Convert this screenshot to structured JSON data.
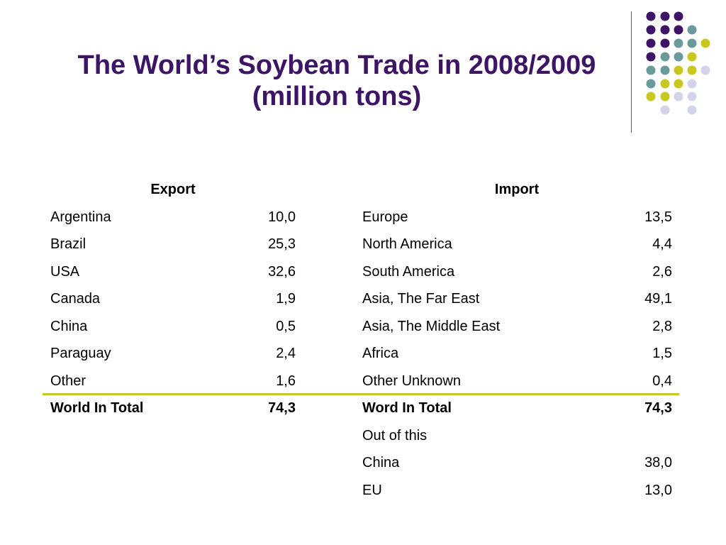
{
  "title": {
    "line1": "The World’s Soybean Trade in 2008/2009",
    "line2": "(million tons)"
  },
  "decoration": {
    "dot_colors": {
      "purple": "#3d1466",
      "teal": "#6a9a9a",
      "yellow": "#c8c820",
      "lavender": "#d4d4e8"
    }
  },
  "table": {
    "export_header": "Export",
    "import_header": "Import",
    "rows": [
      {
        "export_name": "Argentina",
        "export_value": "10,0",
        "import_name": "Europe",
        "import_value": "13,5"
      },
      {
        "export_name": "Brazil",
        "export_value": "25,3",
        "import_name": "North America",
        "import_value": "4,4"
      },
      {
        "export_name": "USA",
        "export_value": "32,6",
        "import_name": "South America",
        "import_value": "2,6"
      },
      {
        "export_name": "Canada",
        "export_value": "1,9",
        "import_name": "Asia, The Far East",
        "import_value": "49,1"
      },
      {
        "export_name": "China",
        "export_value": "0,5",
        "import_name": "Asia, The Middle East",
        "import_value": "2,8"
      },
      {
        "export_name": "Paraguay",
        "export_value": "2,4",
        "import_name": "Africa",
        "import_value": "1,5"
      },
      {
        "export_name": "Other",
        "export_value": "1,6",
        "import_name": "Other Unknown",
        "import_value": "0,4"
      }
    ],
    "totals": {
      "export_label": "World In Total",
      "export_value": "74,3",
      "import_label": "Word In Total",
      "import_value": "74,3"
    },
    "extra": {
      "out_of_this": "Out of this",
      "rows": [
        {
          "name": "China",
          "value": "38,0"
        },
        {
          "name": "EU",
          "value": "13,0"
        }
      ]
    }
  }
}
